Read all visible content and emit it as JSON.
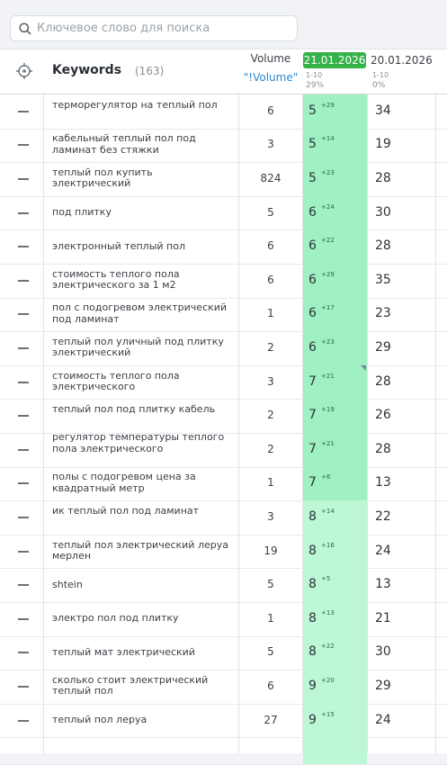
{
  "search": {
    "placeholder": "Ключевое слово для поиска",
    "icon": "search-icon"
  },
  "header": {
    "keywords_label": "Keywords",
    "keywords_count": "(163)",
    "volume_label": "Volume",
    "volume_sub": "\"!Volume\"",
    "date1": {
      "date": "21.01.2026",
      "range": "1-10",
      "percent": "29%"
    },
    "date2": {
      "date": "20.01.2026",
      "range": "1-10",
      "percent": "0%"
    }
  },
  "colors": {
    "accent_green": "#36b24a",
    "pos_top": "#9ff0c2",
    "pos_mid": "#bdf7d6",
    "link_blue": "#2b87d1"
  },
  "rows": [
    {
      "kw": "терморегулятор на теплый пол",
      "vol": "6",
      "pos": "5",
      "chg": "+29",
      "prev": "34",
      "tier": "top"
    },
    {
      "kw": "кабельный теплый пол под ламинат без стяжки",
      "vol": "3",
      "pos": "5",
      "chg": "+14",
      "prev": "19",
      "tier": "top"
    },
    {
      "kw": "теплый пол купить электрический",
      "vol": "824",
      "pos": "5",
      "chg": "+23",
      "prev": "28",
      "tier": "top"
    },
    {
      "kw": "под плитку",
      "vol": "5",
      "pos": "6",
      "chg": "+24",
      "prev": "30",
      "tier": "top"
    },
    {
      "kw": "электронный теплый пол",
      "vol": "6",
      "pos": "6",
      "chg": "+22",
      "prev": "28",
      "tier": "top"
    },
    {
      "kw": "стоимость теплого пола электрического за 1 м2",
      "vol": "6",
      "pos": "6",
      "chg": "+29",
      "prev": "35",
      "tier": "top"
    },
    {
      "kw": "пол с подогревом электрический под ламинат",
      "vol": "1",
      "pos": "6",
      "chg": "+17",
      "prev": "23",
      "tier": "top"
    },
    {
      "kw": "теплый пол уличный под плитку электрический",
      "vol": "2",
      "pos": "6",
      "chg": "+23",
      "prev": "29",
      "tier": "top"
    },
    {
      "kw": "стоимость теплого пола электрического",
      "vol": "3",
      "pos": "7",
      "chg": "+21",
      "prev": "28",
      "tier": "top",
      "note": true
    },
    {
      "kw": "теплый пол под плитку кабель",
      "vol": "2",
      "pos": "7",
      "chg": "+19",
      "prev": "26",
      "tier": "top"
    },
    {
      "kw": "регулятор температуры теплого пола электрического",
      "vol": "2",
      "pos": "7",
      "chg": "+21",
      "prev": "28",
      "tier": "top"
    },
    {
      "kw": "полы с подогревом цена за квадратный метр",
      "vol": "1",
      "pos": "7",
      "chg": "+6",
      "prev": "13",
      "tier": "top"
    },
    {
      "kw": "ик теплый пол под ламинат",
      "vol": "3",
      "pos": "8",
      "chg": "+14",
      "prev": "22",
      "tier": "mid"
    },
    {
      "kw": "теплый пол электрический леруа мерлен",
      "vol": "19",
      "pos": "8",
      "chg": "+16",
      "prev": "24",
      "tier": "mid"
    },
    {
      "kw": "shtein",
      "vol": "5",
      "pos": "8",
      "chg": "+5",
      "prev": "13",
      "tier": "mid"
    },
    {
      "kw": "электро пол под плитку",
      "vol": "1",
      "pos": "8",
      "chg": "+13",
      "prev": "21",
      "tier": "mid"
    },
    {
      "kw": "теплый мат электрический",
      "vol": "5",
      "pos": "8",
      "chg": "+22",
      "prev": "30",
      "tier": "mid"
    },
    {
      "kw": "сколько стоит электрический теплый пол",
      "vol": "6",
      "pos": "9",
      "chg": "+20",
      "prev": "29",
      "tier": "mid"
    },
    {
      "kw": "теплый пол леруа",
      "vol": "27",
      "pos": "9",
      "chg": "+15",
      "prev": "24",
      "tier": "mid"
    }
  ]
}
